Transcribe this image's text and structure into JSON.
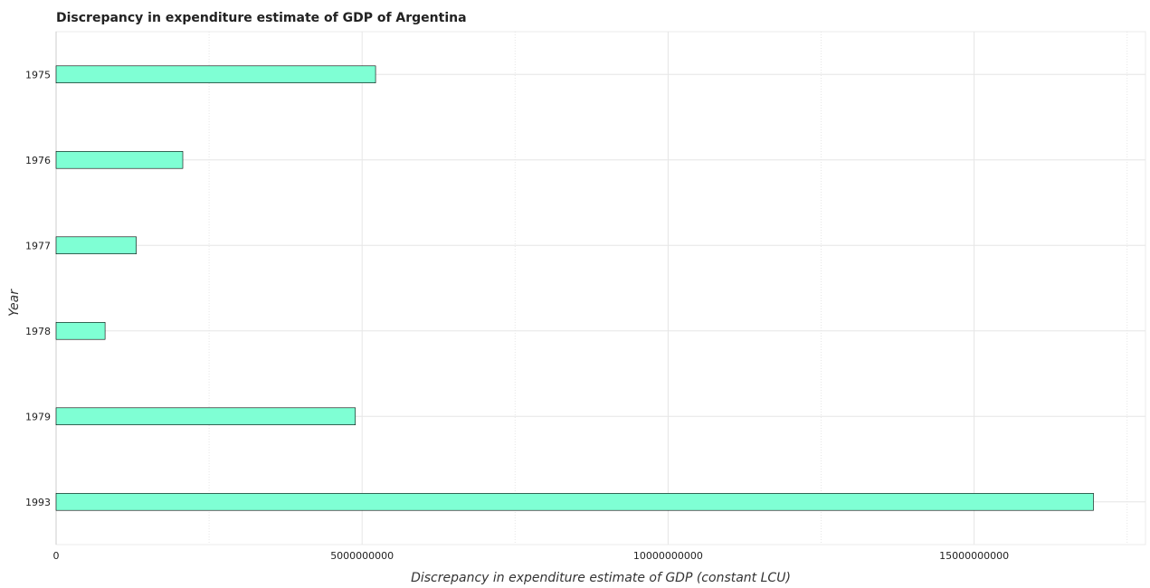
{
  "chart_data": {
    "type": "bar",
    "orientation": "horizontal",
    "title": "Discrepancy in expenditure estimate of GDP of Argentina",
    "xlabel": "Discrepancy in expenditure estimate of GDP (constant LCU)",
    "ylabel": "Year",
    "categories": [
      "1975",
      "1976",
      "1977",
      "1978",
      "1979",
      "1993"
    ],
    "values": [
      5220000000,
      2070000000,
      1310000000,
      800000000,
      4890000000,
      16950000000
    ],
    "xlim": [
      0,
      17800000000
    ],
    "xticks": [
      0,
      5000000000,
      10000000000,
      15000000000
    ],
    "xtick_labels": [
      "0",
      "5000000000",
      "10000000000",
      "15000000000"
    ],
    "grid": true,
    "bar_color": "#7fffd4",
    "bar_edge_color": "#000000"
  }
}
